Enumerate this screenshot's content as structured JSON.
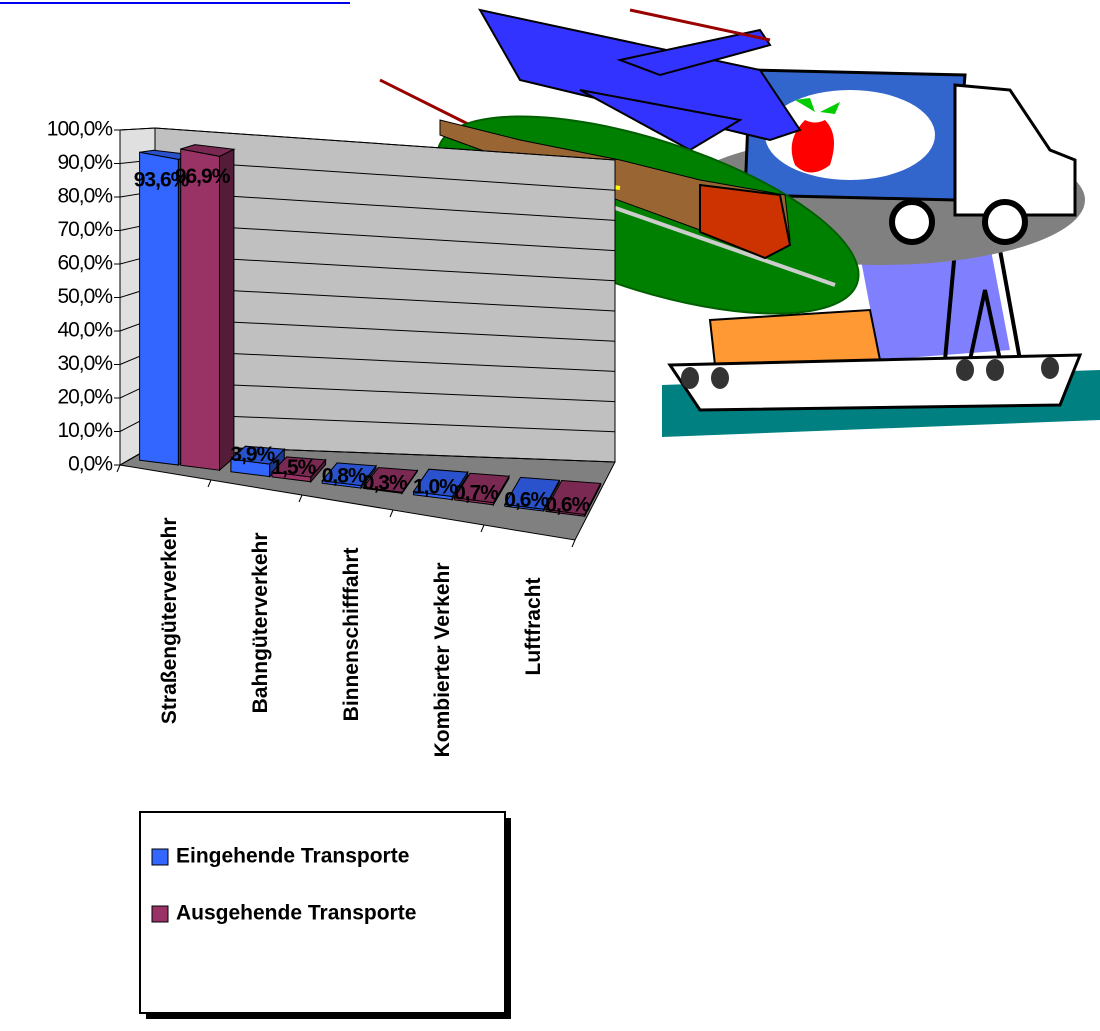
{
  "chart_data": {
    "type": "bar3d",
    "categories": [
      "Straßengüterverkehr",
      "Bahngüterverkehr",
      "Binnenschifffahrt",
      "Kombierter Verkehr",
      "Luftfracht"
    ],
    "series": [
      {
        "name": "Eingehende Transporte",
        "color": "#3366ff",
        "values": [
          93.6,
          3.9,
          0.8,
          1.0,
          0.6
        ],
        "value_labels": [
          "93,6%",
          "3,9%",
          "0,8%",
          "1,0%",
          "0,6%"
        ]
      },
      {
        "name": "Ausgehende Transporte",
        "color": "#993366",
        "values": [
          96.9,
          1.5,
          0.3,
          0.7,
          0.6
        ],
        "value_labels": [
          "96,9%",
          "1,5%",
          "0,3%",
          "0,7%",
          "0,6%"
        ]
      }
    ],
    "ylim": [
      0,
      100
    ],
    "yticks": [
      {
        "value": 0,
        "label": "0,0%"
      },
      {
        "value": 10,
        "label": "10,0%"
      },
      {
        "value": 20,
        "label": "20,0%"
      },
      {
        "value": 30,
        "label": "30,0%"
      },
      {
        "value": 40,
        "label": "40,0%"
      },
      {
        "value": 50,
        "label": "50,0%"
      },
      {
        "value": 60,
        "label": "60,0%"
      },
      {
        "value": 70,
        "label": "70,0%"
      },
      {
        "value": 80,
        "label": "80,0%"
      },
      {
        "value": 90,
        "label": "90,0%"
      },
      {
        "value": 100,
        "label": "100,0%"
      }
    ],
    "grid": true
  }
}
